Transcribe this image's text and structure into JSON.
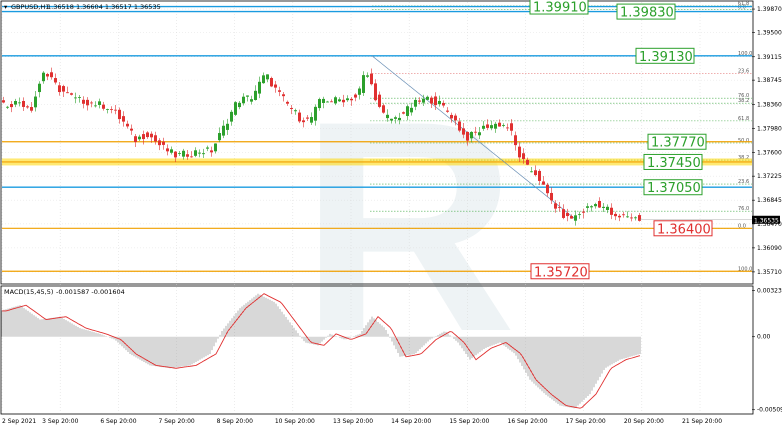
{
  "window": {
    "title": "GBPUSD,H1",
    "ohlc": "1.36518 1.36604 1.36517 1.36535",
    "macd_title": "MACD(15,45,5)",
    "macd_values": "-0.001587 -0.001604",
    "current_price": "1.36535",
    "watermark": "R"
  },
  "colors": {
    "bull": "#2ca02c",
    "bear": "#e03030",
    "price_tag_bg": "#000000",
    "orange_level": "#f0a000",
    "blue_level": "#1a9be0",
    "fib_dotted": "#4caf50",
    "fib_red": "#e06060",
    "grid": "#d8d8d8"
  },
  "chart_data": [
    {
      "type": "candlestick",
      "symbol": "GBPUSD",
      "timeframe": "H1",
      "x_tick_labels": [
        "2 Sep 2021",
        "3 Sep 20:00",
        "6 Sep 20:00",
        "7 Sep 20:00",
        "8 Sep 20:00",
        "10 Sep 20:00",
        "13 Sep 20:00",
        "14 Sep 20:00",
        "15 Sep 20:00",
        "16 Sep 20:00",
        "17 Sep 20:00",
        "20 Sep 20:00",
        "21 Sep 20:00"
      ],
      "y_tick_labels": [
        "1.39870",
        "1.39500",
        "1.39115",
        "1.38745",
        "1.38360",
        "1.37980",
        "1.37600",
        "1.37225",
        "1.36845",
        "1.36470",
        "1.36090",
        "1.35710"
      ],
      "ylim": [
        1.3555,
        1.3995
      ],
      "path": [
        [
          0,
          1.3838
        ],
        [
          10,
          1.3836
        ],
        [
          22,
          1.384
        ],
        [
          34,
          1.3831
        ],
        [
          46,
          1.3888
        ],
        [
          62,
          1.386
        ],
        [
          78,
          1.3844
        ],
        [
          96,
          1.3838
        ],
        [
          112,
          1.3832
        ],
        [
          126,
          1.3808
        ],
        [
          138,
          1.378
        ],
        [
          150,
          1.379
        ],
        [
          164,
          1.3769
        ],
        [
          178,
          1.3755
        ],
        [
          190,
          1.3758
        ],
        [
          202,
          1.3762
        ],
        [
          214,
          1.3763
        ],
        [
          228,
          1.3805
        ],
        [
          240,
          1.3842
        ],
        [
          254,
          1.3848
        ],
        [
          268,
          1.3884
        ],
        [
          278,
          1.386
        ],
        [
          290,
          1.3836
        ],
        [
          302,
          1.3815
        ],
        [
          312,
          1.381
        ],
        [
          324,
          1.3845
        ],
        [
          336,
          1.3842
        ],
        [
          348,
          1.3845
        ],
        [
          360,
          1.3848
        ],
        [
          368,
          1.389
        ],
        [
          376,
          1.3858
        ],
        [
          384,
          1.382
        ],
        [
          396,
          1.3812
        ],
        [
          408,
          1.3825
        ],
        [
          420,
          1.384
        ],
        [
          432,
          1.3845
        ],
        [
          444,
          1.3835
        ],
        [
          456,
          1.3815
        ],
        [
          468,
          1.3782
        ],
        [
          478,
          1.379
        ],
        [
          490,
          1.3803
        ],
        [
          502,
          1.3805
        ],
        [
          512,
          1.38
        ],
        [
          520,
          1.376
        ],
        [
          530,
          1.3735
        ],
        [
          540,
          1.3725
        ],
        [
          550,
          1.3692
        ],
        [
          560,
          1.367
        ],
        [
          570,
          1.3655
        ],
        [
          580,
          1.366
        ],
        [
          590,
          1.3672
        ],
        [
          600,
          1.368
        ],
        [
          610,
          1.367
        ],
        [
          618,
          1.3655
        ],
        [
          630,
          1.366
        ],
        [
          640,
          1.3655
        ]
      ],
      "support_resistance_levels": [
        {
          "value": 1.3991,
          "label": "1.39910",
          "color": "#1a9be0"
        },
        {
          "value": 1.3983,
          "label": "1.39830",
          "color": "#1a9be0"
        },
        {
          "value": 1.3913,
          "label": "1.39130",
          "color": "#1a9be0"
        },
        {
          "value": 1.3777,
          "label": "1.37770",
          "color": "#f0a000"
        },
        {
          "value": 1.3745,
          "label": "1.37450",
          "color": "#f0a000"
        },
        {
          "value": 1.3705,
          "label": "1.37050",
          "color": "#1a9be0"
        },
        {
          "value": 1.364,
          "label": "1.36400",
          "color": "#f0a000"
        },
        {
          "value": 1.3572,
          "label": "1.35720",
          "color": "#f0a000"
        }
      ],
      "level_badges": [
        {
          "text": "1.39910",
          "color": "#2ca02c"
        },
        {
          "text": "1.39830",
          "color": "#2ca02c"
        },
        {
          "text": "1.39130",
          "color": "#2ca02c"
        },
        {
          "text": "1.37770",
          "color": "#2ca02c"
        },
        {
          "text": "1.37450",
          "color": "#2ca02c"
        },
        {
          "text": "1.37050",
          "color": "#2ca02c"
        },
        {
          "text": "1.36400",
          "color": "#e03030"
        },
        {
          "text": "1.35720",
          "color": "#e03030"
        }
      ],
      "fib_levels": [
        {
          "label": "61.8",
          "value": 1.3992
        },
        {
          "label": "0.0",
          "value": 1.3986
        },
        {
          "label": "100.0",
          "value": 1.3913
        },
        {
          "label": "23.6",
          "value": 1.3885
        },
        {
          "label": "76.0",
          "value": 1.3846
        },
        {
          "label": "38.2",
          "value": 1.3838
        },
        {
          "label": "61.8",
          "value": 1.381
        },
        {
          "label": "50.0",
          "value": 1.3775
        },
        {
          "label": "38.2",
          "value": 1.3748
        },
        {
          "label": "23.6",
          "value": 1.371
        },
        {
          "label": "76.0",
          "value": 1.3667
        },
        {
          "label": "0.0",
          "value": 1.364
        },
        {
          "label": "100.0",
          "value": 1.3572
        }
      ]
    },
    {
      "type": "histogram",
      "name": "MACD(15,45,5)",
      "y_tick_labels": [
        "0.003238",
        "0.00",
        "-0.005093"
      ],
      "ylim": [
        -0.00525,
        0.0034
      ],
      "zero_value": 0.0,
      "path": [
        [
          0,
          0.0018
        ],
        [
          20,
          0.0022
        ],
        [
          40,
          0.0012
        ],
        [
          60,
          0.0014
        ],
        [
          80,
          0.0006
        ],
        [
          100,
          0.0002
        ],
        [
          115,
          -0.0002
        ],
        [
          130,
          -0.0012
        ],
        [
          150,
          -0.002
        ],
        [
          170,
          -0.0022
        ],
        [
          190,
          -0.002
        ],
        [
          210,
          -0.0012
        ],
        [
          222,
          0.0004
        ],
        [
          240,
          0.002
        ],
        [
          258,
          0.003
        ],
        [
          275,
          0.0024
        ],
        [
          290,
          0.001
        ],
        [
          305,
          -0.0004
        ],
        [
          318,
          -0.0006
        ],
        [
          330,
          0.0002
        ],
        [
          345,
          -0.0002
        ],
        [
          360,
          0.0002
        ],
        [
          372,
          0.0014
        ],
        [
          385,
          0.0006
        ],
        [
          400,
          -0.0014
        ],
        [
          415,
          -0.0012
        ],
        [
          430,
          -0.0002
        ],
        [
          445,
          0.0004
        ],
        [
          458,
          -0.0004
        ],
        [
          470,
          -0.0016
        ],
        [
          485,
          -0.0008
        ],
        [
          500,
          -0.0004
        ],
        [
          515,
          -0.0012
        ],
        [
          530,
          -0.003
        ],
        [
          545,
          -0.004
        ],
        [
          560,
          -0.0048
        ],
        [
          575,
          -0.005
        ],
        [
          590,
          -0.004
        ],
        [
          605,
          -0.0022
        ],
        [
          620,
          -0.0016
        ],
        [
          640,
          -0.0012
        ]
      ]
    }
  ]
}
